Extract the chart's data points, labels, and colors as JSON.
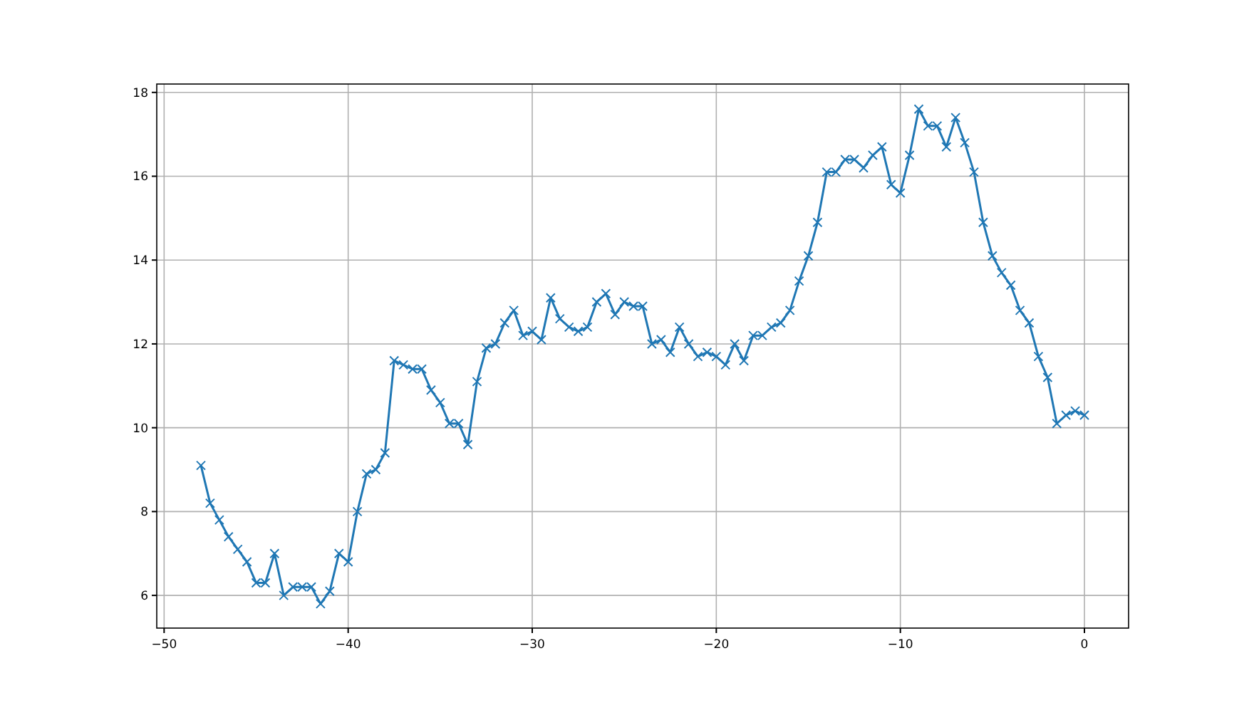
{
  "chart_data": {
    "type": "line",
    "marker": "cross",
    "grid": true,
    "xlim": [
      -50.4,
      2.4
    ],
    "xticks": [
      -50,
      -40,
      -30,
      -20,
      -10,
      0
    ],
    "ylim": [
      5.22,
      18.2
    ],
    "yticks": [
      6,
      8,
      10,
      12,
      14,
      16,
      18
    ],
    "series": [
      {
        "color": "#1f77b4",
        "x": [
          -48,
          -47.5,
          -47,
          -46.5,
          -46,
          -45.5,
          -45,
          -44.5,
          -44,
          -43.5,
          -43,
          -42.5,
          -42,
          -41.5,
          -41,
          -40.5,
          -40,
          -39.5,
          -39,
          -38.5,
          -38,
          -37.5,
          -37,
          -36.5,
          -36,
          -35.5,
          -35,
          -34.5,
          -34,
          -33.5,
          -33,
          -32.5,
          -32,
          -31.5,
          -31,
          -30.5,
          -30,
          -29.5,
          -29,
          -28.5,
          -28,
          -27.5,
          -27,
          -26.5,
          -26,
          -25.5,
          -25,
          -24.5,
          -24,
          -23.5,
          -23,
          -22.5,
          -22,
          -21.5,
          -21,
          -20.5,
          -20,
          -19.5,
          -19,
          -18.5,
          -18,
          -17.5,
          -17,
          -16.5,
          -16,
          -15.5,
          -15,
          -14.5,
          -14,
          -13.5,
          -13,
          -12.5,
          -12,
          -11.5,
          -11,
          -10.5,
          -10,
          -9.5,
          -9,
          -8.5,
          -8,
          -7.5,
          -7,
          -6.5,
          -6,
          -5.5,
          -5,
          -4.5,
          -4,
          -3.5,
          -3,
          -2.5,
          -2,
          -1.5,
          -1,
          -0.5,
          0
        ],
        "values": [
          9.1,
          8.2,
          7.8,
          7.4,
          7.1,
          6.8,
          6.3,
          6.3,
          7.0,
          6.0,
          6.2,
          6.2,
          6.2,
          5.8,
          6.1,
          7.0,
          6.8,
          8.0,
          8.9,
          9.0,
          9.4,
          11.6,
          11.5,
          11.4,
          11.4,
          10.9,
          10.6,
          10.1,
          10.1,
          9.6,
          11.1,
          11.9,
          12.0,
          12.5,
          12.8,
          12.2,
          12.3,
          12.1,
          13.1,
          12.6,
          12.4,
          12.3,
          12.4,
          13.0,
          13.2,
          12.7,
          13.0,
          12.9,
          12.9,
          12.0,
          12.1,
          11.8,
          12.4,
          12.0,
          11.7,
          11.8,
          11.7,
          11.5,
          12.0,
          11.6,
          12.2,
          12.2,
          12.4,
          12.5,
          12.8,
          13.5,
          14.1,
          14.9,
          16.1,
          16.1,
          16.4,
          16.4,
          16.2,
          16.5,
          16.7,
          15.8,
          15.6,
          16.5,
          17.6,
          17.2,
          17.2,
          16.7,
          17.4,
          16.8,
          16.1,
          14.9,
          14.1,
          13.7,
          13.4,
          12.8,
          12.5,
          11.7,
          11.2,
          10.1,
          10.3,
          10.4,
          10.3
        ]
      }
    ]
  }
}
